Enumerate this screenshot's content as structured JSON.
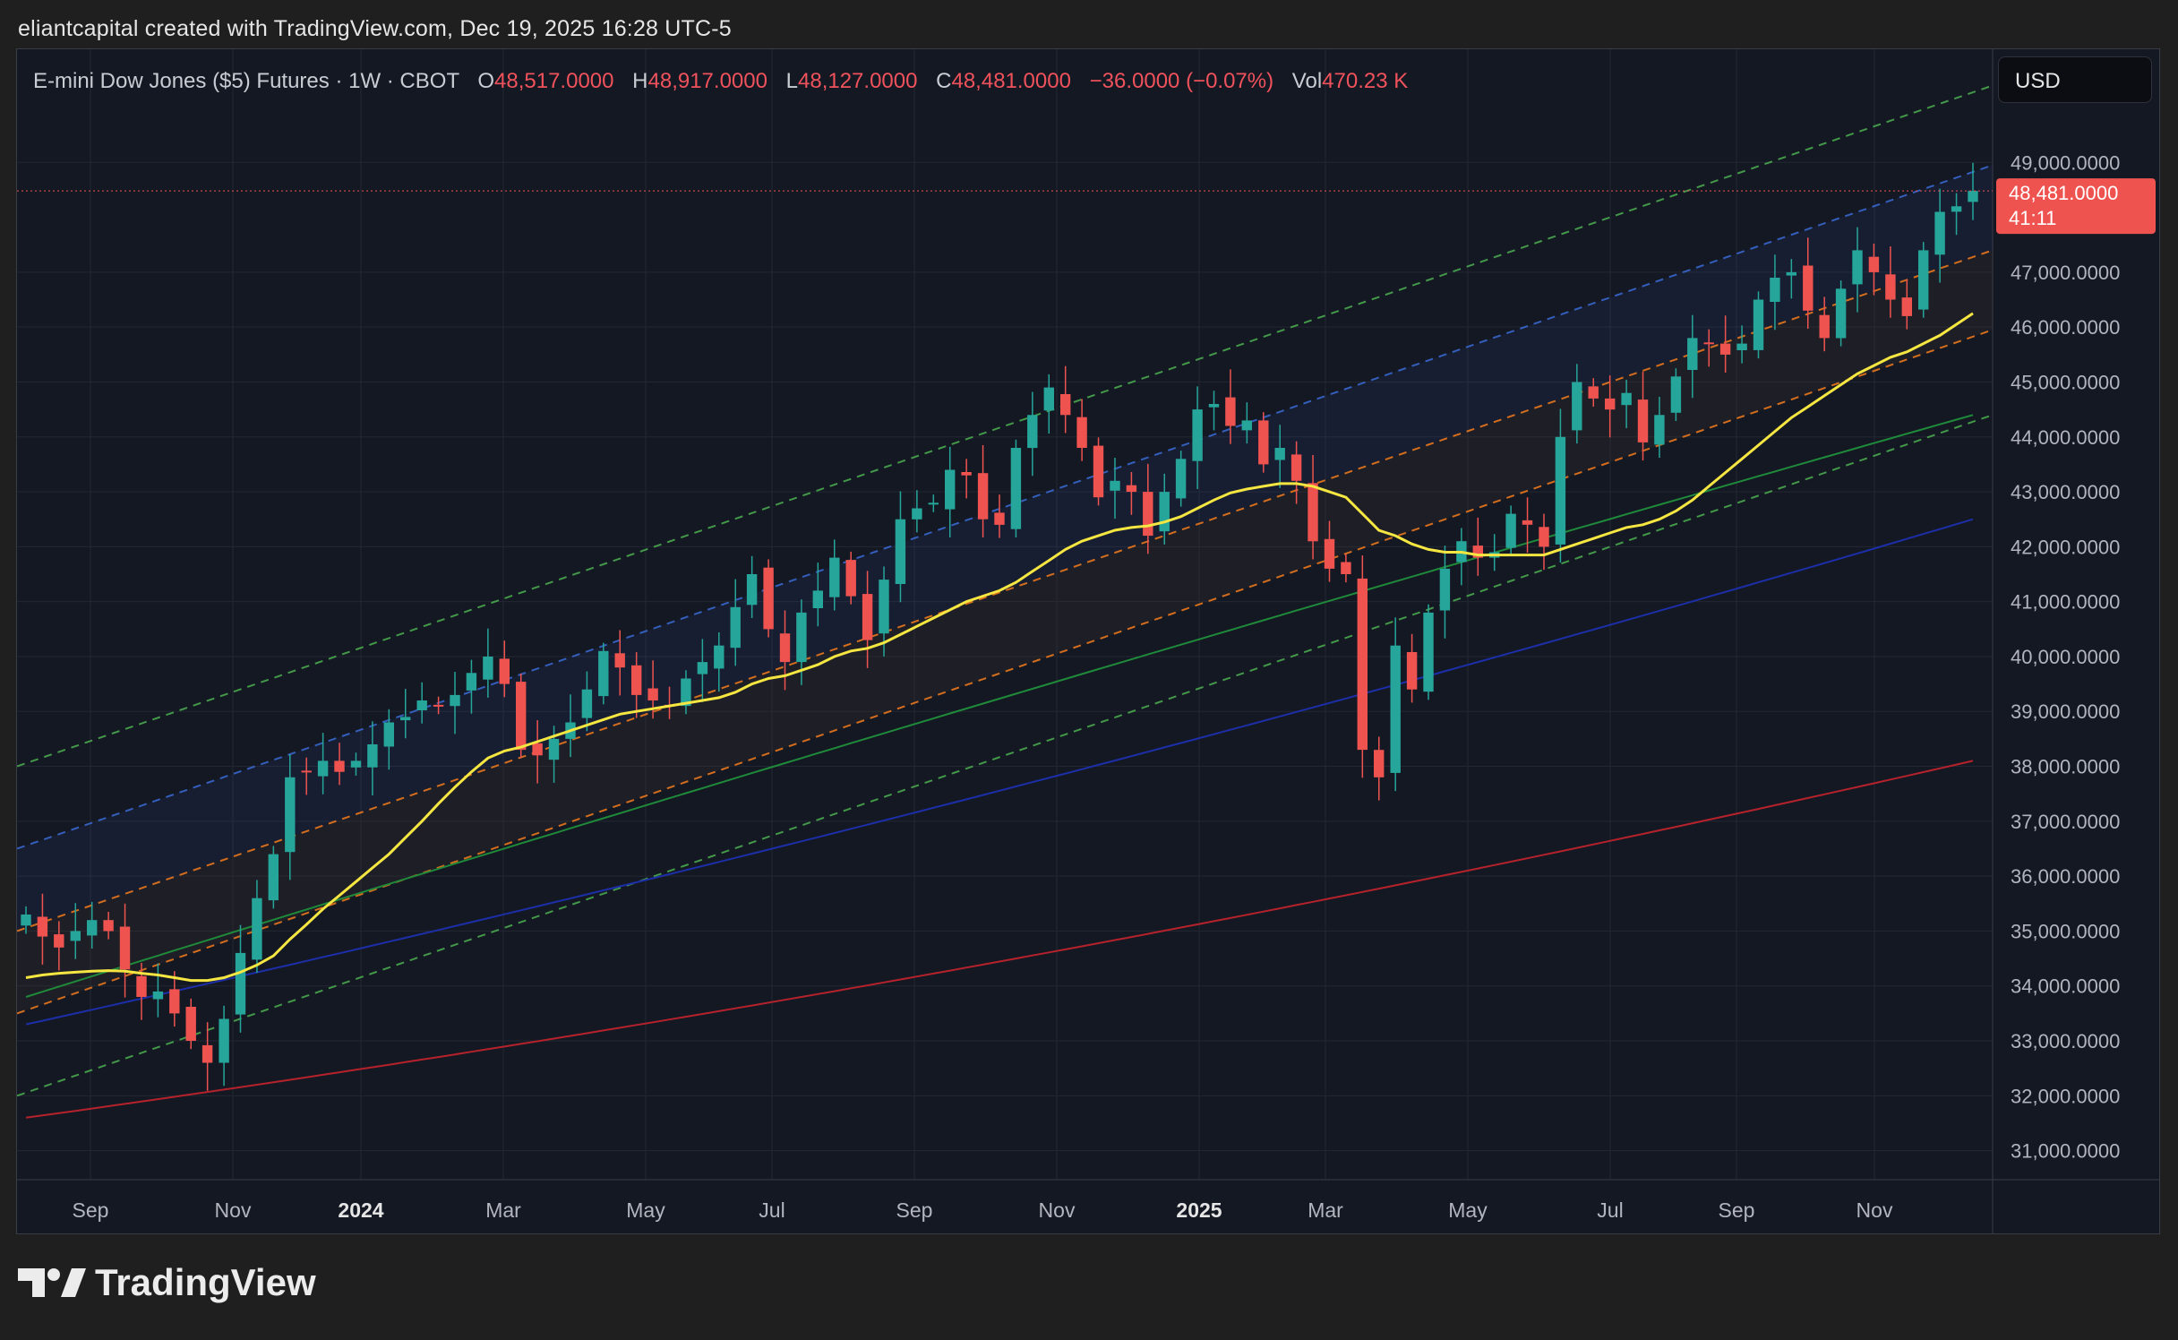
{
  "credit": "eliantcapital created with TradingView.com, Dec 19, 2025 16:28 UTC-5",
  "brand": "TradingView",
  "currency": "USD",
  "legend": {
    "symbol": "E-mini Dow Jones ($5) Futures · 1W · CBOT",
    "open_label": "O",
    "open": "48,517.0000",
    "high_label": "H",
    "high": "48,917.0000",
    "low_label": "L",
    "low": "48,127.0000",
    "close_label": "C",
    "close": "48,481.0000",
    "change": "−36.0000 (−0.07%)",
    "vol_label": "Vol",
    "vol": "470.23 K"
  },
  "price_badge": {
    "price": "48,481.0000",
    "countdown": "41:11"
  },
  "colors": {
    "up": "#26a69a",
    "down": "#ef5350",
    "ema20": "#f5e642",
    "ma50": "#1f8a3a",
    "ma100": "#1c2fa8",
    "ma200": "#b5222c",
    "channel_mid": "#f57c1c",
    "channel_inner": "#3a6bd6",
    "channel_outer": "#4caf50",
    "badge": "#ef5350"
  },
  "chart_data": {
    "type": "candlestick",
    "timeframe": "1W",
    "x_ticks": [
      {
        "label": "Sep",
        "bold": false
      },
      {
        "label": "Nov",
        "bold": false
      },
      {
        "label": "2024",
        "bold": true
      },
      {
        "label": "Mar",
        "bold": false
      },
      {
        "label": "May",
        "bold": false
      },
      {
        "label": "Jul",
        "bold": false
      },
      {
        "label": "Sep",
        "bold": false
      },
      {
        "label": "Nov",
        "bold": false
      },
      {
        "label": "2025",
        "bold": true
      },
      {
        "label": "Mar",
        "bold": false
      },
      {
        "label": "May",
        "bold": false
      },
      {
        "label": "Jul",
        "bold": false
      },
      {
        "label": "Sep",
        "bold": false
      },
      {
        "label": "Nov",
        "bold": false
      }
    ],
    "y_ticks": [
      "49,000.0000",
      "47,000.0000",
      "46,000.0000",
      "45,000.0000",
      "44,000.0000",
      "43,000.0000",
      "42,000.0000",
      "41,000.0000",
      "40,000.0000",
      "39,000.0000",
      "38,000.0000",
      "37,000.0000",
      "36,000.0000",
      "35,000.0000",
      "34,000.0000",
      "33,000.0000",
      "32,000.0000",
      "31,000.0000"
    ],
    "ylim": [
      30700,
      50000
    ],
    "close_series_approx": [
      35300,
      34900,
      34700,
      35000,
      35200,
      35000,
      34300,
      33800,
      33900,
      33500,
      33000,
      32600,
      33400,
      34600,
      35600,
      36400,
      37800,
      37900,
      38100,
      37900,
      38100,
      38400,
      38800,
      38900,
      39200,
      39100,
      39300,
      39700,
      40000,
      39500,
      38300,
      38200,
      38500,
      38800,
      39400,
      40100,
      39800,
      39300,
      39200,
      39100,
      39600,
      39900,
      40200,
      40900,
      41500,
      40500,
      39900,
      40800,
      41200,
      41800,
      41100,
      40300,
      41400,
      42500,
      42700,
      42800,
      43400,
      43300,
      42500,
      42400,
      43800,
      44400,
      44900,
      44400,
      43800,
      42900,
      43200,
      43000,
      42200,
      43000,
      43600,
      44500,
      44600,
      44200,
      44300,
      43500,
      43800,
      43200,
      42100,
      41600,
      41500,
      38300,
      37800,
      40200,
      39400,
      40800,
      41600,
      42100,
      41800,
      41900,
      42600,
      42400,
      42000,
      44000,
      45000,
      44700,
      44500,
      44800,
      43900,
      44400,
      45100,
      45800,
      45700,
      45500,
      45700,
      46500,
      46900,
      47000,
      46300,
      45800,
      46700,
      47400,
      47000,
      46500,
      46200,
      47400,
      48100,
      48200,
      48481
    ],
    "ema20_approx": [
      34150,
      34200,
      34230,
      34250,
      34270,
      34280,
      34270,
      34230,
      34200,
      34150,
      34100,
      34100,
      34150,
      34250,
      34380,
      34550,
      34850,
      35120,
      35400,
      35650,
      35900,
      36150,
      36400,
      36700,
      37000,
      37320,
      37620,
      37900,
      38150,
      38280,
      38350,
      38450,
      38550,
      38650,
      38750,
      38850,
      38950,
      39000,
      39050,
      39100,
      39150,
      39200,
      39250,
      39350,
      39500,
      39600,
      39650,
      39750,
      39850,
      40000,
      40100,
      40150,
      40250,
      40400,
      40550,
      40700,
      40850,
      41000,
      41100,
      41200,
      41350,
      41550,
      41750,
      41950,
      42100,
      42200,
      42300,
      42350,
      42380,
      42450,
      42550,
      42700,
      42850,
      42980,
      43050,
      43100,
      43150,
      43150,
      43100,
      43000,
      42900,
      42600,
      42300,
      42200,
      42050,
      41950,
      41900,
      41900,
      41850,
      41850,
      41850,
      41850,
      41850,
      41950,
      42050,
      42150,
      42250,
      42350,
      42400,
      42500,
      42650,
      42850,
      43100,
      43350,
      43600,
      43850,
      44100,
      44350,
      44550,
      44750,
      44950,
      45150,
      45300,
      45450,
      45550,
      45700,
      45850,
      46050,
      46250
    ],
    "ma50_start_end": [
      33800,
      44400
    ],
    "ma100_start_end": [
      33300,
      42500
    ],
    "ma200_start_end": [
      31600,
      38100
    ],
    "channel": {
      "lower_outer_start_end": [
        32000,
        44400
      ],
      "lower_mid_start_end": [
        33500,
        45950
      ],
      "center_start_end": [
        35000,
        47400
      ],
      "upper_mid_start_end": [
        36500,
        48950
      ],
      "upper_outer_start_end": [
        38000,
        50400
      ]
    },
    "last_price": 48481
  }
}
